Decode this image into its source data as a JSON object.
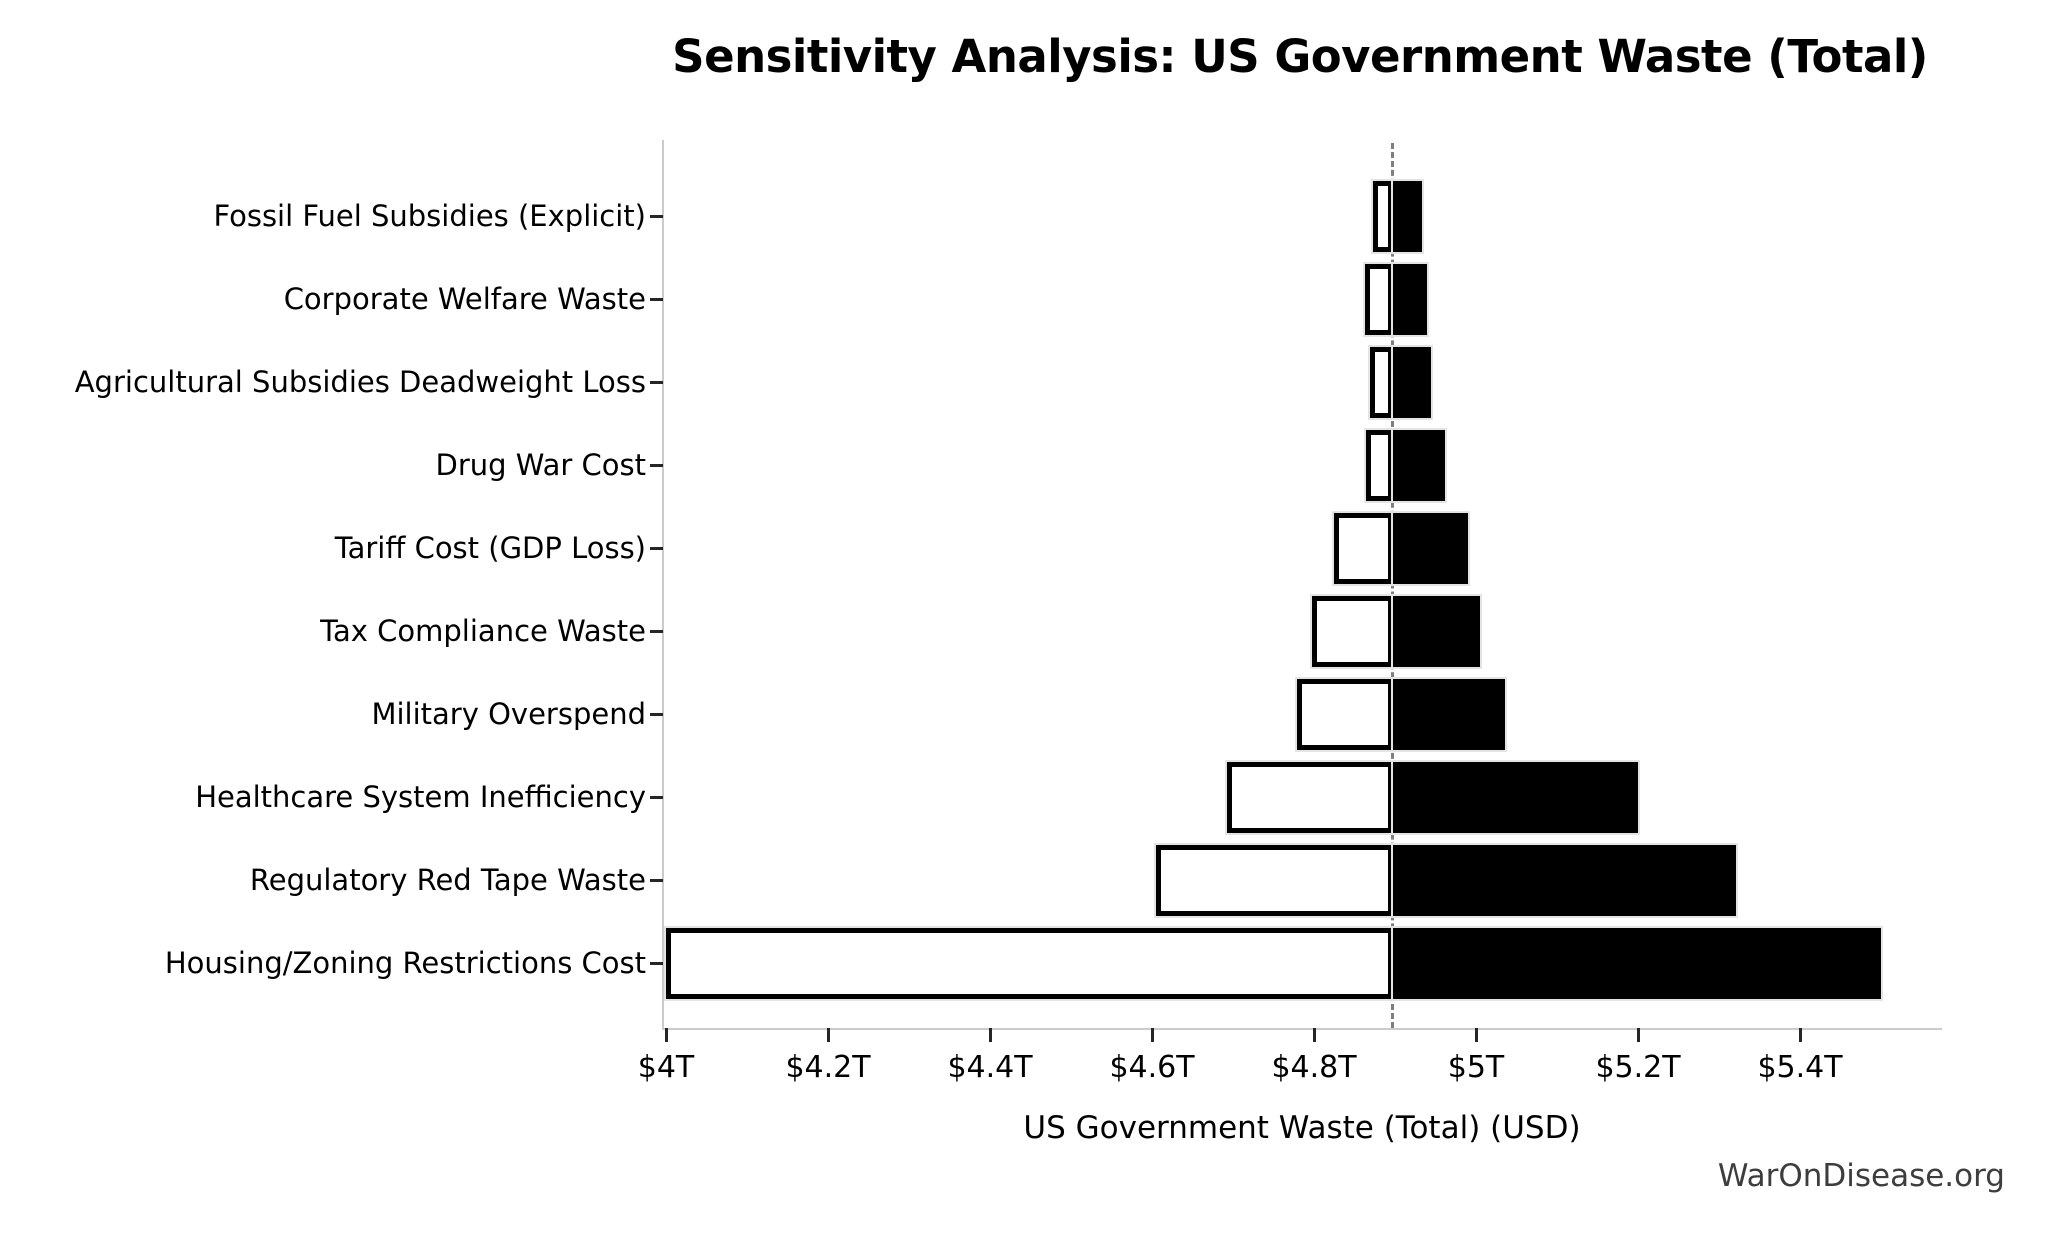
{
  "watermark": "WarOnDisease.org",
  "chart_data": {
    "type": "bar",
    "subtype": "tornado-sensitivity",
    "title": "Sensitivity Analysis: US Government Waste (Total)",
    "xlabel": "US Government Waste (Total) (USD)",
    "unit": "trillion USD",
    "orientation": "horizontal",
    "grid": false,
    "legend": null,
    "baseline_value": 4.897,
    "xlim": [
      4.0,
      5.573
    ],
    "x_ticks": [
      4.0,
      4.2,
      4.4,
      4.6,
      4.8,
      5.0,
      5.2,
      5.4
    ],
    "x_tick_labels": [
      "$4T",
      "$4.2T",
      "$4.4T",
      "$4.6T",
      "$4.8T",
      "$5T",
      "$5.2T",
      "$5.4T"
    ],
    "colors": {
      "low_bar_fill": "#ffffff",
      "low_bar_border": "#000000",
      "high_bar_fill": "#000000",
      "baseline_line": "#7f7f7f",
      "spine": "#cbcbcb",
      "text": "#000000"
    },
    "rows": [
      {
        "label": "Fossil Fuel Subsidies (Explicit)",
        "low": 4.873,
        "high": 4.933
      },
      {
        "label": "Corporate Welfare Waste",
        "low": 4.863,
        "high": 4.94
      },
      {
        "label": "Agricultural Subsidies Deadweight Loss",
        "low": 4.869,
        "high": 4.945
      },
      {
        "label": "Drug War Cost",
        "low": 4.864,
        "high": 4.962
      },
      {
        "label": "Tariff Cost (GDP Loss)",
        "low": 4.825,
        "high": 4.99
      },
      {
        "label": "Tax Compliance Waste",
        "low": 4.798,
        "high": 5.005
      },
      {
        "label": "Military Overspend",
        "low": 4.779,
        "high": 5.036
      },
      {
        "label": "Healthcare System Inefficiency",
        "low": 4.693,
        "high": 5.2
      },
      {
        "label": "Regulatory Red Tape Waste",
        "low": 4.605,
        "high": 5.321
      },
      {
        "label": "Housing/Zoning Restrictions Cost",
        "low": 4.0,
        "high": 5.5
      }
    ]
  }
}
